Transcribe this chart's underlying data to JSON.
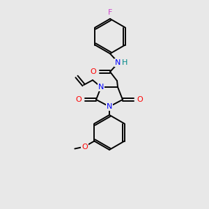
{
  "bg_color": "#e8e8e8",
  "bond_color": "#000000",
  "atom_colors": {
    "N": "#0000ff",
    "O": "#ff0000",
    "F": "#cc44cc",
    "H": "#008888"
  },
  "figsize": [
    3.0,
    3.0
  ],
  "dpi": 100
}
